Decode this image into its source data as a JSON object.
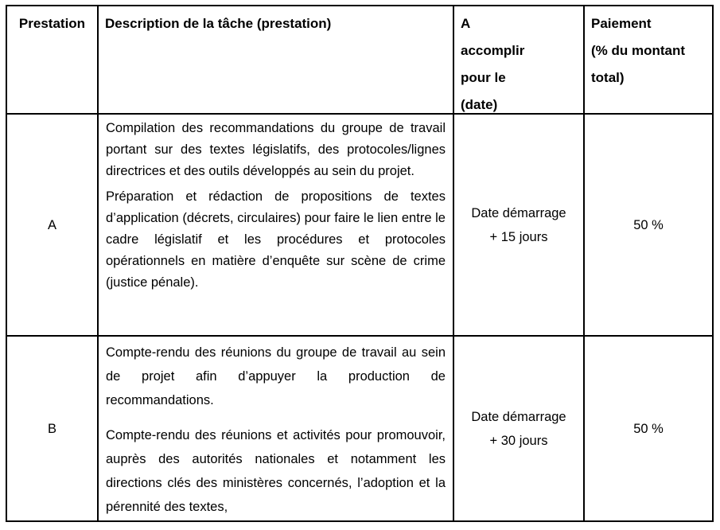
{
  "document": {
    "background_color": "#ffffff",
    "border_color": "#000000",
    "table": {
      "columns": [
        {
          "label": "Prestation"
        },
        {
          "label": "Description de la tâche (prestation)"
        },
        {
          "label": "A\naccomplir\npour le\n(date)"
        },
        {
          "label": "Paiement\n(% du montant\ntotal)"
        }
      ],
      "rows": [
        {
          "prestation": "A",
          "description_paragraphs": [
            "Compilation des recommandations du groupe de travail portant sur des textes législatifs, des protocoles/lignes directrices et des outils développés au sein du projet.",
            "Préparation et rédaction de propositions de textes d’application (décrets, circulaires) pour faire le lien entre le cadre législatif et les procédures et protocoles opérationnels en matière d’enquête sur scène de crime (justice pénale)."
          ],
          "due_date": "Date démarrage\n+ 15 jours",
          "payment": "50 %"
        },
        {
          "prestation": "B",
          "description_paragraphs": [
            "Compte-rendu des réunions du groupe de travail au sein de projet afin d’appuyer la production de recommandations.",
            "Compte-rendu des réunions et activités pour promouvoir, auprès des autorités nationales et notamment les directions clés des ministères concernés, l’adoption et la pérennité des textes,"
          ],
          "due_date": "Date démarrage\n+ 30 jours",
          "payment": "50 %"
        }
      ]
    }
  }
}
